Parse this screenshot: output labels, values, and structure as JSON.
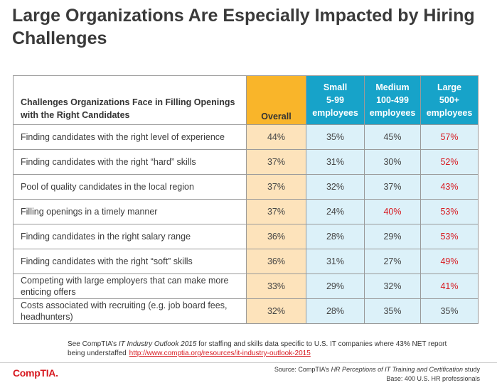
{
  "title": "Large Organizations Are Especially Impacted by Hiring Challenges",
  "colors": {
    "overall_header": "#f9b52a",
    "size_header": "#17a3c9",
    "highlight": "#d71920"
  },
  "table": {
    "header_label": "Challenges Organizations Face in Filling Openings with the Right Candidates",
    "header_overall": "Overall",
    "header_small": [
      "Small",
      "5-99",
      "employees"
    ],
    "header_medium": [
      "Medium",
      "100-499",
      "employees"
    ],
    "header_large": [
      "Large",
      "500+",
      "employees"
    ],
    "rows": [
      {
        "label": "Finding candidates with the right level of experience",
        "overall": "44%",
        "small": "35%",
        "medium": "45%",
        "large": "57%"
      },
      {
        "label": "Finding candidates with the right “hard” skills",
        "overall": "37%",
        "small": "31%",
        "medium": "30%",
        "large": "52%"
      },
      {
        "label": "Pool of quality candidates in the local region",
        "overall": "37%",
        "small": "32%",
        "medium": "37%",
        "large": "43%"
      },
      {
        "label": "Filling openings in a timely manner",
        "overall": "37%",
        "small": "24%",
        "medium": "40%",
        "large": "53%"
      },
      {
        "label": "Finding candidates in the right salary range",
        "overall": "36%",
        "small": "28%",
        "medium": "29%",
        "large": "53%"
      },
      {
        "label": "Finding candidates with the right “soft” skills",
        "overall": "36%",
        "small": "31%",
        "medium": "27%",
        "large": "49%"
      },
      {
        "label": "Competing with large employers that can make more enticing offers",
        "overall": "33%",
        "small": "29%",
        "medium": "32%",
        "large": "41%"
      },
      {
        "label": "Costs associated with recruiting (e.g. job board fees, headhunters)",
        "overall": "32%",
        "small": "28%",
        "medium": "35%",
        "large": "35%"
      }
    ]
  },
  "note": {
    "prefix": "See CompTIA’s ",
    "report": "IT Industry Outlook 2015",
    "suffix": " for staffing and skills data specific to U.S. IT companies where 43% NET report being understaffed",
    "url": "http://www.comptia.org/resources/it-industry-outlook-2015"
  },
  "logo": "CompTIA.",
  "source": {
    "prefix": "Source: CompTIA’s ",
    "study": "HR Perceptions of IT Training and Certification",
    "suffix": " study",
    "base": "Base: 400 U.S. HR professionals"
  }
}
